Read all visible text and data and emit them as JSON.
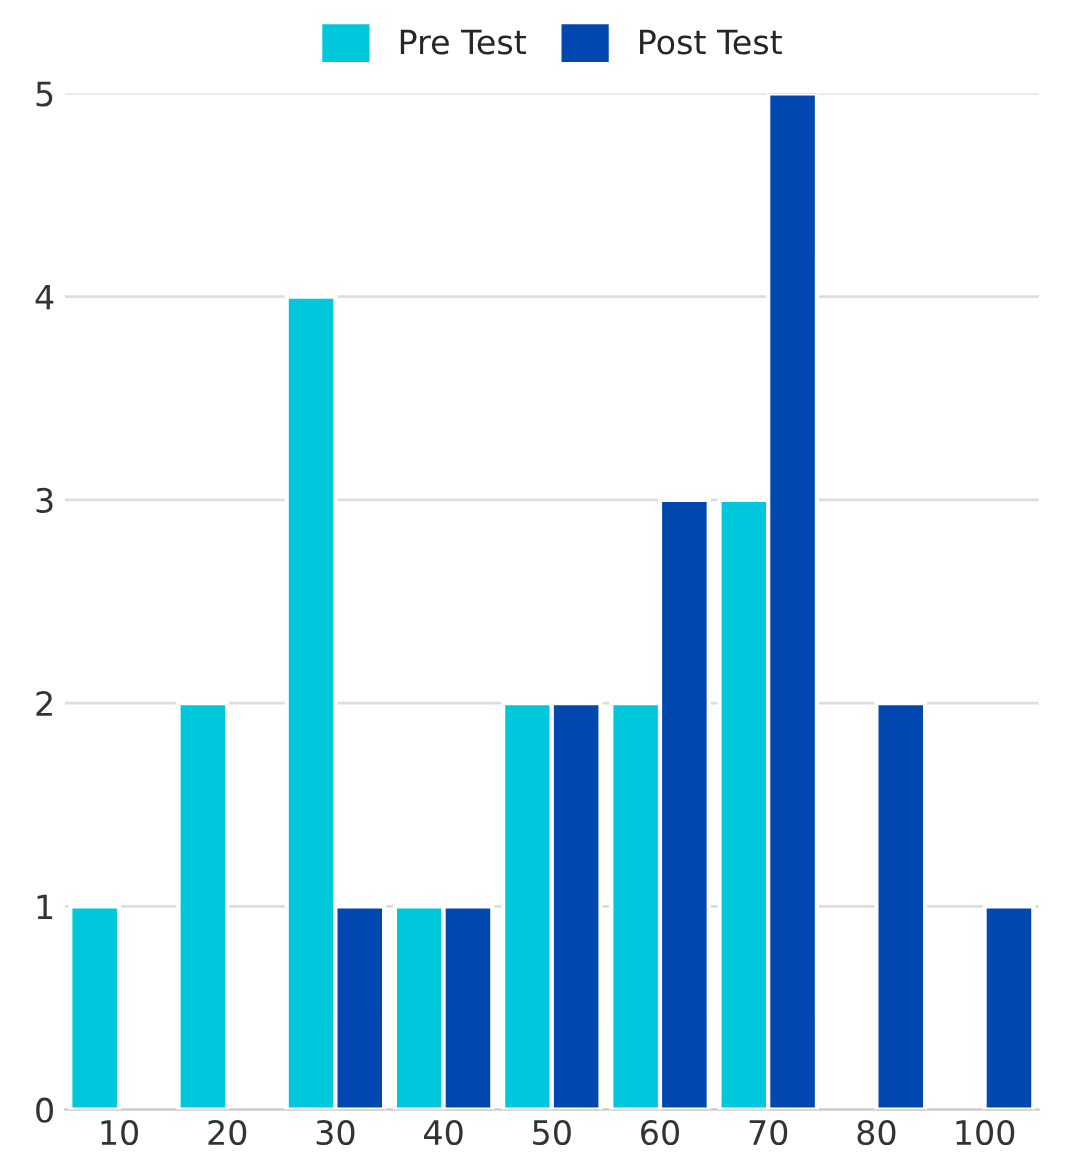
{
  "chart_data": {
    "type": "bar",
    "categories": [
      "10",
      "20",
      "30",
      "40",
      "50",
      "60",
      "70",
      "80",
      "100"
    ],
    "series": [
      {
        "name": "Pre Test",
        "color": "#00c8dc",
        "values": [
          1,
          2,
          4,
          1,
          2,
          2,
          3,
          null,
          null
        ]
      },
      {
        "name": "Post Test",
        "color": "#0047b0",
        "values": [
          null,
          null,
          1,
          1,
          2,
          3,
          5,
          2,
          1
        ]
      }
    ],
    "ylim": [
      0,
      5
    ],
    "yticks": [
      0,
      1,
      2,
      3,
      4,
      5
    ],
    "grid": "y",
    "legend": "top"
  }
}
